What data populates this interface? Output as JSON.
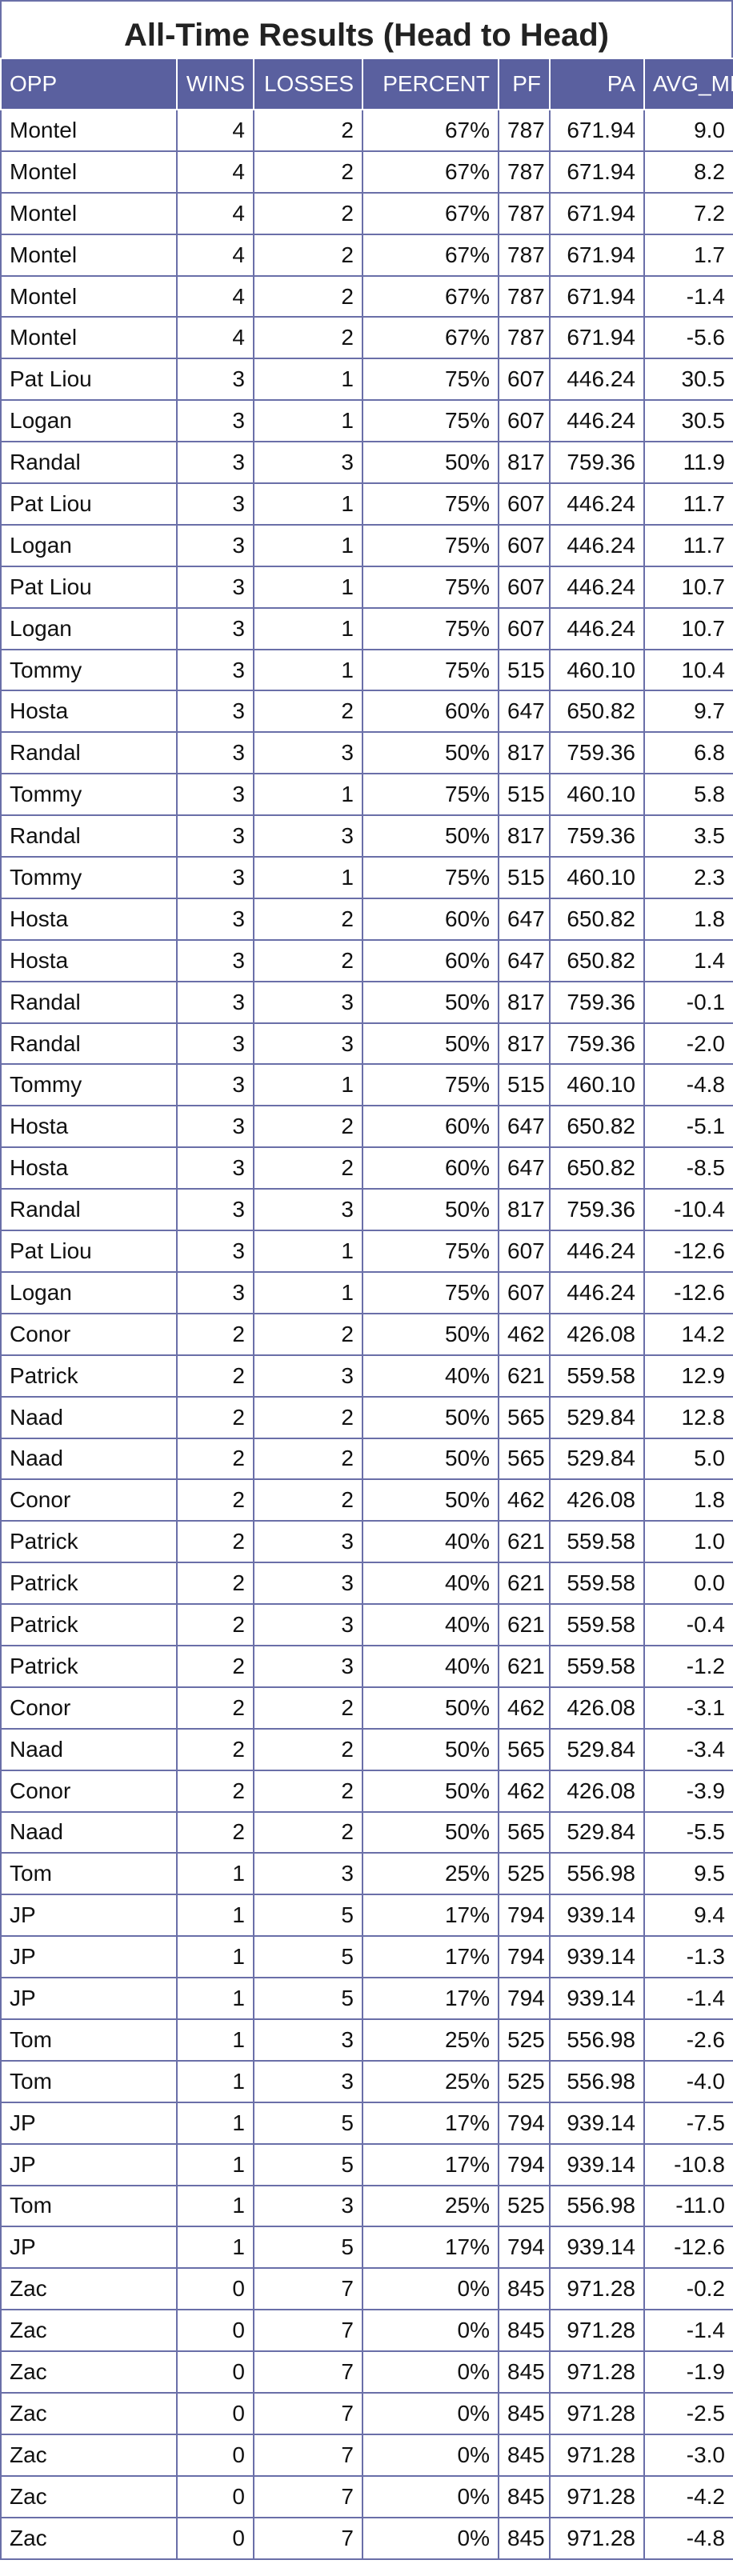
{
  "chart_data": {
    "type": "table",
    "title": "All-Time Results (Head to Head)",
    "columns": [
      "OPP",
      "WINS",
      "LOSSES",
      "PERCENT",
      "PF",
      "PA",
      "AVG_MRG"
    ],
    "rows": [
      [
        "Montel",
        "4",
        "2",
        "67%",
        "787",
        "671.94",
        "9.0"
      ],
      [
        "Montel",
        "4",
        "2",
        "67%",
        "787",
        "671.94",
        "8.2"
      ],
      [
        "Montel",
        "4",
        "2",
        "67%",
        "787",
        "671.94",
        "7.2"
      ],
      [
        "Montel",
        "4",
        "2",
        "67%",
        "787",
        "671.94",
        "1.7"
      ],
      [
        "Montel",
        "4",
        "2",
        "67%",
        "787",
        "671.94",
        "-1.4"
      ],
      [
        "Montel",
        "4",
        "2",
        "67%",
        "787",
        "671.94",
        "-5.6"
      ],
      [
        "Pat Liou",
        "3",
        "1",
        "75%",
        "607",
        "446.24",
        "30.5"
      ],
      [
        "Logan",
        "3",
        "1",
        "75%",
        "607",
        "446.24",
        "30.5"
      ],
      [
        "Randal",
        "3",
        "3",
        "50%",
        "817",
        "759.36",
        "11.9"
      ],
      [
        "Pat Liou",
        "3",
        "1",
        "75%",
        "607",
        "446.24",
        "11.7"
      ],
      [
        "Logan",
        "3",
        "1",
        "75%",
        "607",
        "446.24",
        "11.7"
      ],
      [
        "Pat Liou",
        "3",
        "1",
        "75%",
        "607",
        "446.24",
        "10.7"
      ],
      [
        "Logan",
        "3",
        "1",
        "75%",
        "607",
        "446.24",
        "10.7"
      ],
      [
        "Tommy",
        "3",
        "1",
        "75%",
        "515",
        "460.10",
        "10.4"
      ],
      [
        "Hosta",
        "3",
        "2",
        "60%",
        "647",
        "650.82",
        "9.7"
      ],
      [
        "Randal",
        "3",
        "3",
        "50%",
        "817",
        "759.36",
        "6.8"
      ],
      [
        "Tommy",
        "3",
        "1",
        "75%",
        "515",
        "460.10",
        "5.8"
      ],
      [
        "Randal",
        "3",
        "3",
        "50%",
        "817",
        "759.36",
        "3.5"
      ],
      [
        "Tommy",
        "3",
        "1",
        "75%",
        "515",
        "460.10",
        "2.3"
      ],
      [
        "Hosta",
        "3",
        "2",
        "60%",
        "647",
        "650.82",
        "1.8"
      ],
      [
        "Hosta",
        "3",
        "2",
        "60%",
        "647",
        "650.82",
        "1.4"
      ],
      [
        "Randal",
        "3",
        "3",
        "50%",
        "817",
        "759.36",
        "-0.1"
      ],
      [
        "Randal",
        "3",
        "3",
        "50%",
        "817",
        "759.36",
        "-2.0"
      ],
      [
        "Tommy",
        "3",
        "1",
        "75%",
        "515",
        "460.10",
        "-4.8"
      ],
      [
        "Hosta",
        "3",
        "2",
        "60%",
        "647",
        "650.82",
        "-5.1"
      ],
      [
        "Hosta",
        "3",
        "2",
        "60%",
        "647",
        "650.82",
        "-8.5"
      ],
      [
        "Randal",
        "3",
        "3",
        "50%",
        "817",
        "759.36",
        "-10.4"
      ],
      [
        "Pat Liou",
        "3",
        "1",
        "75%",
        "607",
        "446.24",
        "-12.6"
      ],
      [
        "Logan",
        "3",
        "1",
        "75%",
        "607",
        "446.24",
        "-12.6"
      ],
      [
        "Conor",
        "2",
        "2",
        "50%",
        "462",
        "426.08",
        "14.2"
      ],
      [
        "Patrick",
        "2",
        "3",
        "40%",
        "621",
        "559.58",
        "12.9"
      ],
      [
        "Naad",
        "2",
        "2",
        "50%",
        "565",
        "529.84",
        "12.8"
      ],
      [
        "Naad",
        "2",
        "2",
        "50%",
        "565",
        "529.84",
        "5.0"
      ],
      [
        "Conor",
        "2",
        "2",
        "50%",
        "462",
        "426.08",
        "1.8"
      ],
      [
        "Patrick",
        "2",
        "3",
        "40%",
        "621",
        "559.58",
        "1.0"
      ],
      [
        "Patrick",
        "2",
        "3",
        "40%",
        "621",
        "559.58",
        "0.0"
      ],
      [
        "Patrick",
        "2",
        "3",
        "40%",
        "621",
        "559.58",
        "-0.4"
      ],
      [
        "Patrick",
        "2",
        "3",
        "40%",
        "621",
        "559.58",
        "-1.2"
      ],
      [
        "Conor",
        "2",
        "2",
        "50%",
        "462",
        "426.08",
        "-3.1"
      ],
      [
        "Naad",
        "2",
        "2",
        "50%",
        "565",
        "529.84",
        "-3.4"
      ],
      [
        "Conor",
        "2",
        "2",
        "50%",
        "462",
        "426.08",
        "-3.9"
      ],
      [
        "Naad",
        "2",
        "2",
        "50%",
        "565",
        "529.84",
        "-5.5"
      ],
      [
        "Tom",
        "1",
        "3",
        "25%",
        "525",
        "556.98",
        "9.5"
      ],
      [
        "JP",
        "1",
        "5",
        "17%",
        "794",
        "939.14",
        "9.4"
      ],
      [
        "JP",
        "1",
        "5",
        "17%",
        "794",
        "939.14",
        "-1.3"
      ],
      [
        "JP",
        "1",
        "5",
        "17%",
        "794",
        "939.14",
        "-1.4"
      ],
      [
        "Tom",
        "1",
        "3",
        "25%",
        "525",
        "556.98",
        "-2.6"
      ],
      [
        "Tom",
        "1",
        "3",
        "25%",
        "525",
        "556.98",
        "-4.0"
      ],
      [
        "JP",
        "1",
        "5",
        "17%",
        "794",
        "939.14",
        "-7.5"
      ],
      [
        "JP",
        "1",
        "5",
        "17%",
        "794",
        "939.14",
        "-10.8"
      ],
      [
        "Tom",
        "1",
        "3",
        "25%",
        "525",
        "556.98",
        "-11.0"
      ],
      [
        "JP",
        "1",
        "5",
        "17%",
        "794",
        "939.14",
        "-12.6"
      ],
      [
        "Zac",
        "0",
        "7",
        "0%",
        "845",
        "971.28",
        "-0.2"
      ],
      [
        "Zac",
        "0",
        "7",
        "0%",
        "845",
        "971.28",
        "-1.4"
      ],
      [
        "Zac",
        "0",
        "7",
        "0%",
        "845",
        "971.28",
        "-1.9"
      ],
      [
        "Zac",
        "0",
        "7",
        "0%",
        "845",
        "971.28",
        "-2.5"
      ],
      [
        "Zac",
        "0",
        "7",
        "0%",
        "845",
        "971.28",
        "-3.0"
      ],
      [
        "Zac",
        "0",
        "7",
        "0%",
        "845",
        "971.28",
        "-4.2"
      ],
      [
        "Zac",
        "0",
        "7",
        "0%",
        "845",
        "971.28",
        "-4.8"
      ]
    ]
  },
  "colors": {
    "header_bg": "#5a609f",
    "header_text": "#ffffff",
    "grid": "#6a6fa8",
    "cell_text": "#111111"
  }
}
